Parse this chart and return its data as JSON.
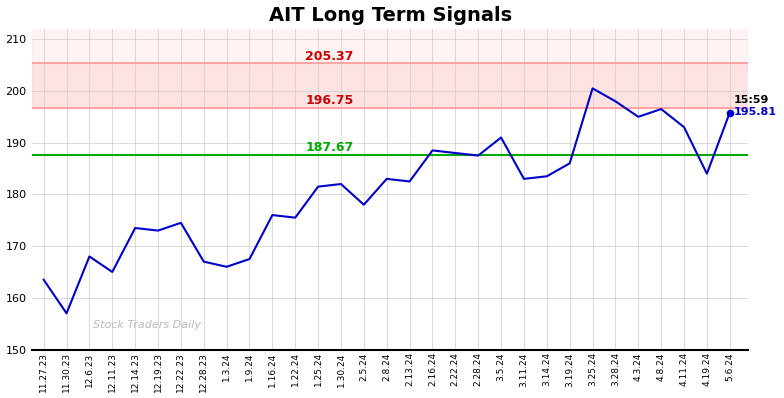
{
  "title": "AIT Long Term Signals",
  "title_fontsize": 14,
  "background_color": "#ffffff",
  "plot_bg_color": "#ffffff",
  "line_color": "#0000cc",
  "line_width": 1.5,
  "hline_green": 187.67,
  "hline_red1": 196.75,
  "hline_red2": 205.37,
  "green_color": "#00aa00",
  "red_color": "#cc0000",
  "label_205": "205.37",
  "label_196": "196.75",
  "label_187": "187.67",
  "label_time": "15:59",
  "label_price": "195.81",
  "watermark": "Stock Traders Daily",
  "ylim_min": 150,
  "ylim_max": 212,
  "yticks": [
    150,
    160,
    170,
    180,
    190,
    200,
    210
  ],
  "x_labels": [
    "11.27.23",
    "11.30.23",
    "12.6.23",
    "12.11.23",
    "12.14.23",
    "12.19.23",
    "12.22.23",
    "12.28.23",
    "1.3.24",
    "1.9.24",
    "1.16.24",
    "1.22.24",
    "1.25.24",
    "1.30.24",
    "2.5.24",
    "2.8.24",
    "2.13.24",
    "2.16.24",
    "2.22.24",
    "2.28.24",
    "3.5.24",
    "3.11.24",
    "3.14.24",
    "3.19.24",
    "3.25.24",
    "3.28.24",
    "4.3.24",
    "4.8.24",
    "4.11.24",
    "4.19.24",
    "5.6.24"
  ],
  "y_values": [
    163.5,
    157.0,
    168.0,
    165.0,
    173.5,
    173.0,
    174.5,
    167.0,
    166.0,
    167.5,
    176.0,
    175.5,
    181.5,
    182.0,
    178.0,
    183.0,
    182.5,
    188.5,
    188.0,
    187.5,
    191.0,
    183.0,
    183.5,
    186.0,
    200.5,
    198.0,
    195.0,
    196.5,
    193.0,
    184.0,
    195.81
  ],
  "pink_color": "#ffcccc",
  "pink_alpha": 0.55
}
